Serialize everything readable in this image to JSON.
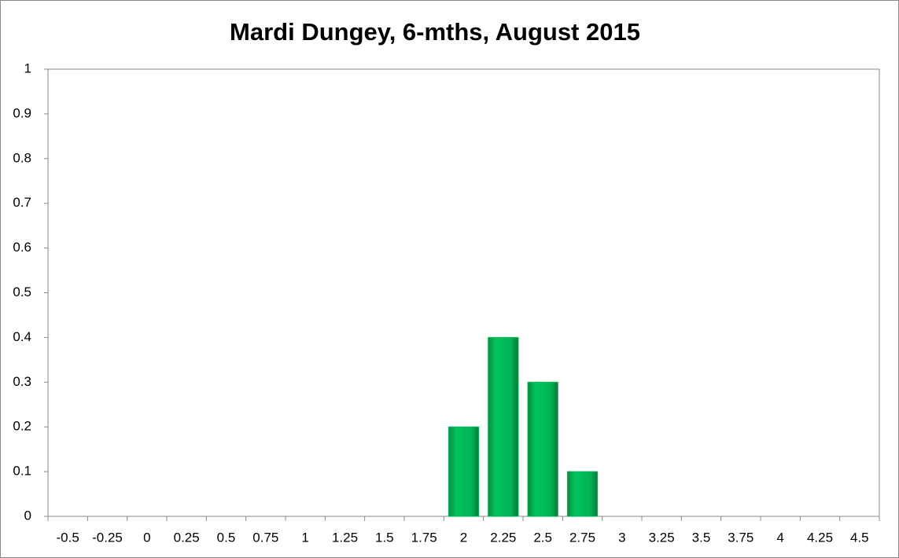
{
  "chart_data": {
    "type": "bar",
    "title": "Mardi Dungey, 6-mths, August 2015",
    "categories": [
      "-0.5",
      "-0.25",
      "0",
      "0.25",
      "0.5",
      "0.75",
      "1",
      "1.25",
      "1.5",
      "1.75",
      "2",
      "2.25",
      "2.5",
      "2.75",
      "3",
      "3.25",
      "3.5",
      "3.75",
      "4",
      "4.25",
      "4.5"
    ],
    "values": [
      0,
      0,
      0,
      0,
      0,
      0,
      0,
      0,
      0,
      0,
      0.2,
      0.4,
      0.3,
      0.1,
      0,
      0,
      0,
      0,
      0,
      0,
      0
    ],
    "color": "#00b455",
    "ylim": [
      0,
      1
    ],
    "yticks": [
      0,
      0.1,
      0.2,
      0.3,
      0.4,
      0.5,
      0.6,
      0.7,
      0.8,
      0.9,
      1
    ],
    "grid": false
  }
}
